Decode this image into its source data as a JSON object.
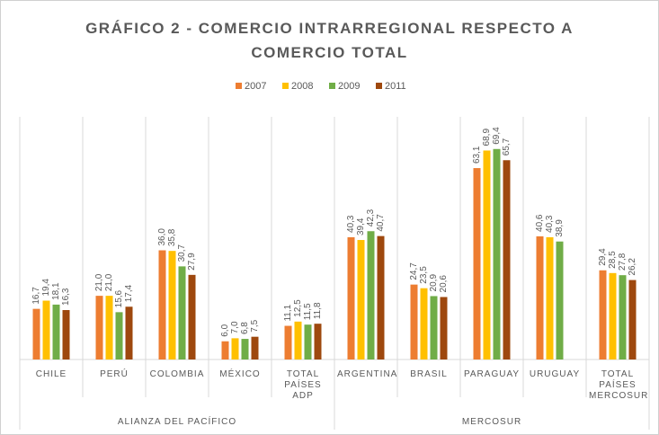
{
  "chart_data": {
    "type": "bar",
    "title": "GRÁFICO 2 - COMERCIO INTRARREGIONAL RESPECTO A COMERCIO TOTAL",
    "categories": [
      "CHILE",
      "PERÚ",
      "COLOMBIA",
      "MÉXICO",
      "TOTAL PAÍSES ADP",
      "ARGENTINA",
      "BRASIL",
      "PARAGUAY",
      "URUGUAY",
      "TOTAL PAÍSES MERCOSUR"
    ],
    "groups": [
      {
        "name": "ALIANZA DEL PACÍFICO",
        "count": 5
      },
      {
        "name": "MERCOSUR",
        "count": 5
      }
    ],
    "series": [
      {
        "name": "2007",
        "color": "#ED7D31",
        "values": [
          16.7,
          21.0,
          36.0,
          6.0,
          11.1,
          40.3,
          24.7,
          63.1,
          40.6,
          29.4
        ],
        "value_labels": [
          "16,7",
          "21,0",
          "36,0",
          "6,0",
          "11,1",
          "40,3",
          "24,7",
          "63,1",
          "40,6",
          "29,4"
        ]
      },
      {
        "name": "2008",
        "color": "#FFC000",
        "values": [
          19.4,
          21.0,
          35.8,
          7.0,
          12.5,
          39.4,
          23.5,
          68.9,
          40.3,
          28.5
        ],
        "value_labels": [
          "19,4",
          "21,0",
          "35,8",
          "7,0",
          "12,5",
          "39,4",
          "23,5",
          "68,9",
          "40,3",
          "28,5"
        ]
      },
      {
        "name": "2009",
        "color": "#70AD47",
        "values": [
          18.1,
          15.6,
          30.7,
          6.8,
          11.5,
          42.3,
          20.9,
          69.4,
          38.9,
          27.8
        ],
        "value_labels": [
          "18,1",
          "15,6",
          "30,7",
          "6,8",
          "11,5",
          "42,3",
          "20,9",
          "69,4",
          "38,9",
          "27,8"
        ]
      },
      {
        "name": "2011",
        "color": "#9E480E",
        "values": [
          16.3,
          17.4,
          27.9,
          7.5,
          11.8,
          40.7,
          20.6,
          65.7,
          null,
          26.2
        ],
        "value_labels": [
          "16,3",
          "17,4",
          "27,9",
          "7,5",
          "11,8",
          "40,7",
          "20,6",
          "65,7",
          null,
          "26,2"
        ]
      }
    ],
    "ylim": [
      0,
      80
    ],
    "legend": "top"
  }
}
